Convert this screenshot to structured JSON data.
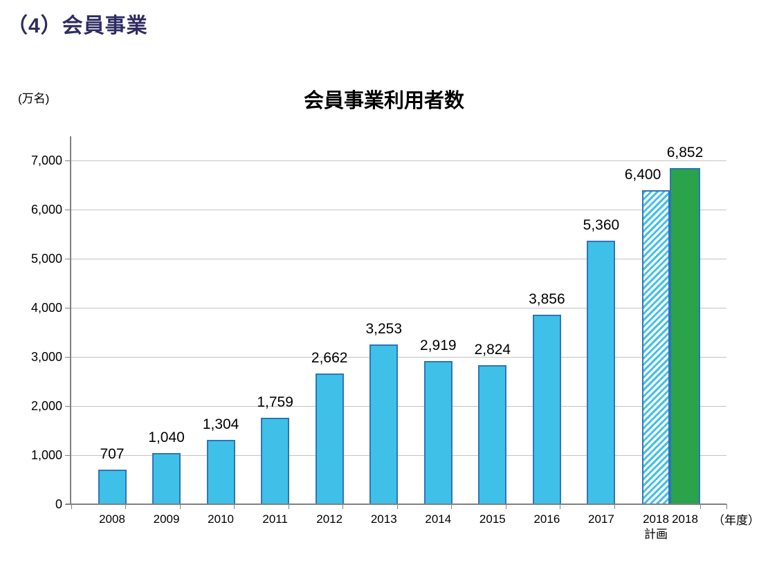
{
  "heading": "（4）会員事業",
  "chart_data": {
    "type": "bar",
    "title": "会員事業利用者数",
    "unit_label": "(万名)",
    "x_unit_label": "（年度）",
    "xlabel": "",
    "ylabel": "(万名)",
    "ylim": [
      0,
      7000
    ],
    "ytick_step": 1000,
    "ytick_labels": [
      "0",
      "1,000",
      "2,000",
      "3,000",
      "4,000",
      "5,000",
      "6,000",
      "7,000"
    ],
    "grid": true,
    "legend": null,
    "categories": [
      "2008",
      "2009",
      "2010",
      "2011",
      "2012",
      "2013",
      "2014",
      "2015",
      "2016",
      "2017",
      "2018計画",
      "2018"
    ],
    "category_label_lines": [
      [
        "2008"
      ],
      [
        "2009"
      ],
      [
        "2010"
      ],
      [
        "2011"
      ],
      [
        "2012"
      ],
      [
        "2013"
      ],
      [
        "2014"
      ],
      [
        "2015"
      ],
      [
        "2016"
      ],
      [
        "2017"
      ],
      [
        "2018",
        "計画"
      ],
      [
        "2018"
      ]
    ],
    "values": [
      707,
      1040,
      1304,
      1759,
      2662,
      3253,
      2919,
      2824,
      3856,
      5360,
      6400,
      6852
    ],
    "value_labels": [
      "707",
      "1,040",
      "1,304",
      "1,759",
      "2,662",
      "3,253",
      "2,919",
      "2,824",
      "3,856",
      "5,360",
      "6,400",
      "6,852"
    ],
    "bar_styles": [
      "solid",
      "solid",
      "solid",
      "solid",
      "solid",
      "solid",
      "solid",
      "solid",
      "solid",
      "solid",
      "hatched",
      "actual"
    ],
    "colors": {
      "bar_fill": "#3ec0e8",
      "bar_border": "#2e75b6",
      "actual_fill": "#2aa34a",
      "grid_color": "#c3c3c3",
      "axis_color": "#808080",
      "heading_color": "#2e2d62"
    }
  }
}
